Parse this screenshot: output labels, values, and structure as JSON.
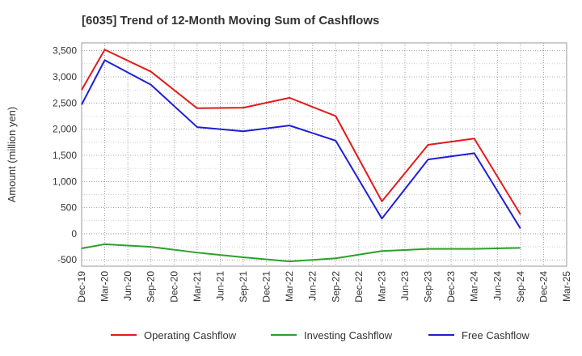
{
  "chart_data": {
    "type": "line",
    "title": "[6035]  Trend of 12-Month Moving Sum of Cashflows",
    "xlabel": "",
    "ylabel": "Amount (million yen)",
    "x": [
      "Dec-19",
      "Mar-20",
      "Jun-20",
      "Sep-20",
      "Dec-20",
      "Mar-21",
      "Jun-21",
      "Sep-21",
      "Dec-21",
      "Mar-22",
      "Jun-22",
      "Sep-22",
      "Dec-22",
      "Mar-23",
      "Jun-23",
      "Sep-23",
      "Dec-23",
      "Mar-24",
      "Jun-24",
      "Sep-24",
      "Dec-24",
      "Mar-25"
    ],
    "ylim": [
      -620,
      3650
    ],
    "yticks": [
      -500,
      0,
      500,
      1000,
      1500,
      2000,
      2500,
      3000,
      3500
    ],
    "ytick_labels": [
      "-500",
      "0",
      "500",
      "1,000",
      "1,500",
      "2,000",
      "2,500",
      "3,000",
      "3,500"
    ],
    "grid": true,
    "legend_position": "bottom",
    "series": [
      {
        "name": "Operating Cashflow",
        "color": "#e31a1c",
        "points": [
          [
            0,
            2750
          ],
          [
            1,
            3520
          ],
          [
            3,
            3100
          ],
          [
            5,
            2400
          ],
          [
            7,
            2410
          ],
          [
            9,
            2600
          ],
          [
            11,
            2250
          ],
          [
            13,
            620
          ],
          [
            15,
            1700
          ],
          [
            17,
            1820
          ],
          [
            19,
            370
          ]
        ]
      },
      {
        "name": "Investing Cashflow",
        "color": "#2ca02c",
        "points": [
          [
            0,
            -280
          ],
          [
            1,
            -200
          ],
          [
            3,
            -250
          ],
          [
            5,
            -360
          ],
          [
            7,
            -450
          ],
          [
            9,
            -530
          ],
          [
            11,
            -470
          ],
          [
            13,
            -330
          ],
          [
            15,
            -290
          ],
          [
            17,
            -290
          ],
          [
            19,
            -270
          ]
        ]
      },
      {
        "name": "Free Cashflow",
        "color": "#1f1fd6",
        "points": [
          [
            0,
            2470
          ],
          [
            1,
            3320
          ],
          [
            3,
            2850
          ],
          [
            5,
            2040
          ],
          [
            7,
            1960
          ],
          [
            9,
            2070
          ],
          [
            11,
            1780
          ],
          [
            13,
            290
          ],
          [
            15,
            1420
          ],
          [
            17,
            1540
          ],
          [
            19,
            100
          ]
        ]
      }
    ]
  }
}
